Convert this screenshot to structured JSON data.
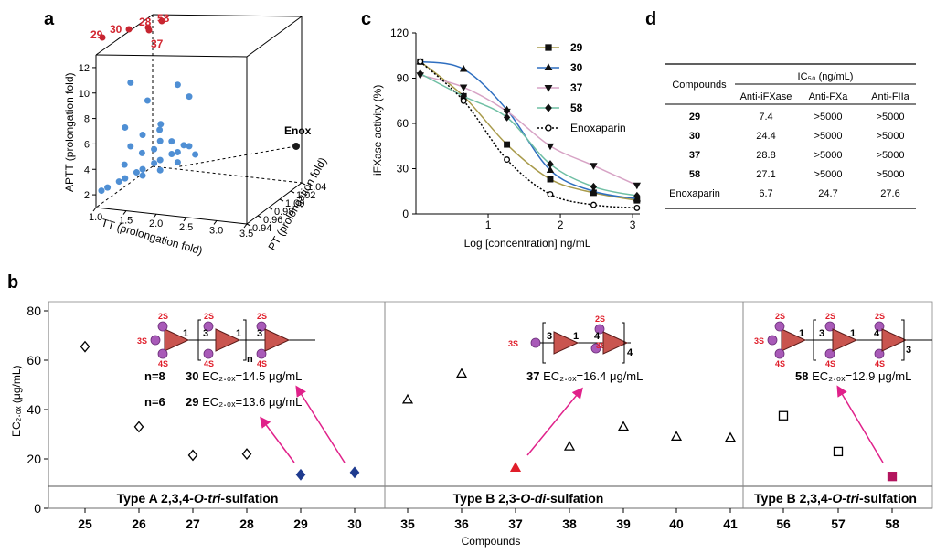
{
  "panels": {
    "a": "a",
    "b": "b",
    "c": "c",
    "d": "d"
  },
  "chart_data": [
    {
      "panel": "a",
      "type": "scatter",
      "title": "",
      "xlabel": "TT (prolongation fold)",
      "ylabel": "APTT (prolongation fold)",
      "zlabel": "PT (prolongation fold)",
      "x_ticks": [
        "1.0",
        "1.5",
        "2.0",
        "2.5",
        "3.0",
        "3.5"
      ],
      "y_ticks": [
        "2",
        "4",
        "6",
        "8",
        "10",
        "12"
      ],
      "z_ticks": [
        "0.94",
        "0.96",
        "0.98",
        "1.00",
        "1.02",
        "1.04"
      ],
      "xlim": [
        1.0,
        3.5
      ],
      "ylim": [
        1,
        13
      ],
      "zlim": [
        0.94,
        1.04
      ],
      "highlight_points": [
        {
          "label": "29",
          "x": 1.05,
          "y": 12.6,
          "z": 1.04
        },
        {
          "label": "30",
          "x": 1.5,
          "y": 12.6,
          "z": 1.04
        },
        {
          "label": "28",
          "x": 2.05,
          "y": 12.6,
          "z": 1.04
        },
        {
          "label": "58",
          "x": 2.3,
          "y": 12.6,
          "z": 1.04
        },
        {
          "label": "37",
          "x": 2.1,
          "y": 12.5,
          "z": 1.04
        }
      ],
      "reference_point": {
        "label": "Enox",
        "x": 3.5,
        "y": 4.2,
        "z": 1.03
      },
      "cloud_points": [
        {
          "x": 1.3,
          "y": 10.0,
          "z": 0.97
        },
        {
          "x": 1.4,
          "y": 8.0,
          "z": 0.99
        },
        {
          "x": 1.3,
          "y": 6.8,
          "z": 0.96
        },
        {
          "x": 1.5,
          "y": 6.0,
          "z": 0.97
        },
        {
          "x": 1.6,
          "y": 5.8,
          "z": 0.99
        },
        {
          "x": 1.7,
          "y": 5.3,
          "z": 0.98
        },
        {
          "x": 1.9,
          "y": 9.5,
          "z": 0.99
        },
        {
          "x": 2.0,
          "y": 8.3,
          "z": 1.0
        },
        {
          "x": 1.8,
          "y": 7.0,
          "z": 0.97
        },
        {
          "x": 1.1,
          "y": 2.3,
          "z": 0.95
        },
        {
          "x": 1.2,
          "y": 2.5,
          "z": 0.96
        },
        {
          "x": 1.3,
          "y": 2.8,
          "z": 0.96
        },
        {
          "x": 1.4,
          "y": 3.0,
          "z": 0.97
        },
        {
          "x": 1.5,
          "y": 3.3,
          "z": 0.97
        },
        {
          "x": 1.6,
          "y": 3.5,
          "z": 0.98
        },
        {
          "x": 1.7,
          "y": 3.8,
          "z": 0.98
        },
        {
          "x": 1.8,
          "y": 4.0,
          "z": 0.99
        },
        {
          "x": 1.9,
          "y": 4.2,
          "z": 0.99
        },
        {
          "x": 2.0,
          "y": 4.4,
          "z": 1.0
        },
        {
          "x": 1.2,
          "y": 3.5,
          "z": 0.97
        },
        {
          "x": 1.4,
          "y": 4.2,
          "z": 0.98
        },
        {
          "x": 1.6,
          "y": 4.6,
          "z": 0.98
        },
        {
          "x": 1.8,
          "y": 5.0,
          "z": 0.99
        },
        {
          "x": 1.0,
          "y": 2.0,
          "z": 0.95
        },
        {
          "x": 1.5,
          "y": 2.8,
          "z": 0.97
        },
        {
          "x": 1.7,
          "y": 3.0,
          "z": 0.98
        },
        {
          "x": 1.9,
          "y": 3.4,
          "z": 0.99
        },
        {
          "x": 2.1,
          "y": 3.8,
          "z": 1.0
        },
        {
          "x": 2.0,
          "y": 4.8,
          "z": 0.99
        },
        {
          "x": 1.3,
          "y": 5.0,
          "z": 0.97
        }
      ]
    },
    {
      "panel": "c",
      "type": "line",
      "xlabel": "Log [concentration] ng/mL",
      "ylabel": "iFXase activity (%)",
      "x_ticks": [
        "1",
        "2",
        "3"
      ],
      "y_ticks": [
        "0",
        "30",
        "60",
        "90",
        "120"
      ],
      "xlim": [
        0.0,
        3.1
      ],
      "ylim": [
        0,
        120
      ],
      "x": [
        0.0,
        0.6,
        1.2,
        1.8,
        2.4,
        3.0
      ],
      "series": [
        {
          "name": "29",
          "marker": "square",
          "color": "#a89a4a",
          "values": [
            101,
            78,
            46,
            23,
            14,
            9
          ]
        },
        {
          "name": "30",
          "marker": "triangle-up",
          "color": "#2f6fc0",
          "values": [
            101,
            96,
            69,
            29,
            15,
            10
          ]
        },
        {
          "name": "37",
          "marker": "triangle-down",
          "color": "#d7a3c5",
          "values": [
            92,
            84,
            68,
            45,
            32,
            19
          ]
        },
        {
          "name": "58",
          "marker": "diamond",
          "color": "#6fbfa4",
          "values": [
            93,
            78,
            64,
            33,
            18,
            12
          ]
        },
        {
          "name": "Enoxaparin",
          "marker": "open-circle",
          "color": "#000000",
          "values": [
            101,
            75,
            36,
            13,
            6,
            4
          ]
        }
      ]
    },
    {
      "panel": "d",
      "type": "table",
      "header_top": "IC₅₀ (ng/mL)",
      "row_header": "Compounds",
      "columns": [
        "Anti-iFXase",
        "Anti-FXa",
        "Anti-FIIa"
      ],
      "rows": [
        {
          "name": "29",
          "values": [
            "7.4",
            ">5000",
            ">5000"
          ]
        },
        {
          "name": "30",
          "values": [
            "24.4",
            ">5000",
            ">5000"
          ]
        },
        {
          "name": "37",
          "values": [
            "28.8",
            ">5000",
            ">5000"
          ]
        },
        {
          "name": "58",
          "values": [
            "27.1",
            ">5000",
            ">5000"
          ]
        },
        {
          "name": "Enoxaparin",
          "values": [
            "6.7",
            "24.7",
            "27.6"
          ]
        }
      ]
    },
    {
      "panel": "b",
      "type": "scatter",
      "xlabel": "Compounds",
      "ylabel": "EC₂.₀ₓ (μg/mL)",
      "y_ticks": [
        "0",
        "20",
        "40",
        "60",
        "80"
      ],
      "ylim": [
        0,
        80
      ],
      "categories": [
        "25",
        "26",
        "27",
        "28",
        "29",
        "30",
        "35",
        "36",
        "37",
        "38",
        "39",
        "40",
        "41",
        "56",
        "57",
        "58"
      ],
      "values": [
        65.5,
        33.0,
        21.5,
        22.0,
        13.6,
        14.5,
        44.0,
        54.5,
        16.4,
        25.0,
        33.0,
        29.0,
        28.5,
        37.5,
        23.0,
        12.9
      ],
      "markers": [
        "open-diamond",
        "open-diamond",
        "open-diamond",
        "open-diamond",
        "filled-diamond",
        "filled-diamond",
        "open-triangle",
        "open-triangle",
        "filled-triangle",
        "open-triangle",
        "open-triangle",
        "open-triangle",
        "open-triangle",
        "open-square",
        "open-square",
        "filled-square"
      ],
      "groups": [
        {
          "label_pre": "Type A 2,3,4-",
          "label_it": "O-tri",
          "label_post": "-sulfation"
        },
        {
          "label_pre": "Type B 2,3-",
          "label_it": "O-di",
          "label_post": "-sulfation"
        },
        {
          "label_pre": "Type B 2,3,4-",
          "label_it": "O-tri",
          "label_post": "-sulfation"
        }
      ],
      "annotations": [
        {
          "n": "n=8",
          "compound": "30",
          "text": "EC₂.₀ₓ=14.5 μg/mL"
        },
        {
          "n": "n=6",
          "compound": "29",
          "text": "EC₂.₀ₓ=13.6 μg/mL"
        },
        {
          "compound": "37",
          "text": "EC₂.₀ₓ=16.4 μg/mL"
        },
        {
          "compound": "58",
          "text": "EC₂.₀ₓ=12.9 μg/mL"
        }
      ],
      "colors": {
        "blue": "#1f3b8f",
        "red": "#e01e2a",
        "crimson": "#b3155e",
        "arrow": "#e0218a",
        "sugar": "#c9554f",
        "sulfate": "#a85ab8"
      },
      "structure_labels": {
        "sulfate_2": "2S",
        "sulfate_3": "3S",
        "sulfate_4": "4S",
        "link_1": "1",
        "link_3": "3",
        "link_4": "4",
        "repeat_n": "n",
        "repeat_4": "4",
        "repeat_3": "3"
      }
    }
  ]
}
